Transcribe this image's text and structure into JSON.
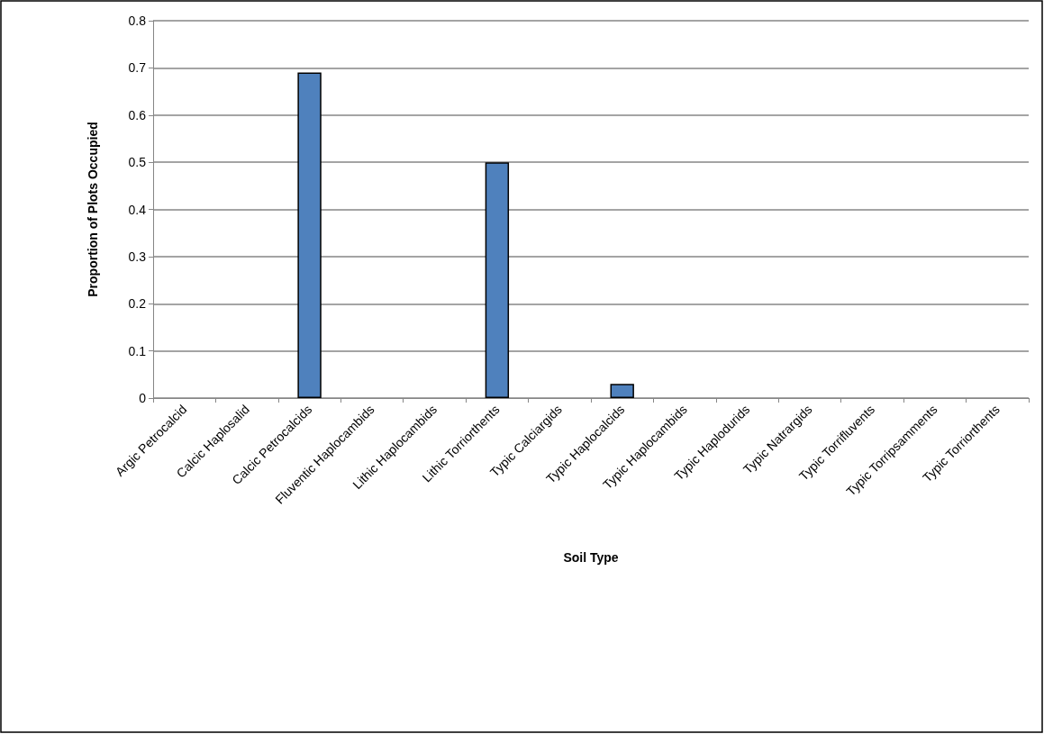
{
  "chart_data": {
    "type": "bar",
    "xlabel": "Soil Type",
    "ylabel": "Proportion of Plots Occupied",
    "categories": [
      "Argic Petrocalcid",
      "Calcic Haplosalid",
      "Calcic Petrocalcids",
      "Fluventic Haplocambids",
      "Lithic Haplocambids",
      "Lithic Torriorthents",
      "Typic Calciargids",
      "Typic Haplocalcids",
      "Typic Haplocambids",
      "Typic Haplodurids",
      "Typic Natrargids",
      "Typic Torrifluvents",
      "Typic Torripsamments",
      "Typic Torriorthents"
    ],
    "values": [
      0,
      0,
      0.69,
      0,
      0,
      0.5,
      0,
      0.03,
      0,
      0,
      0,
      0,
      0,
      0
    ],
    "color": "#4f81bd",
    "ylim": [
      0,
      0.8
    ],
    "yticks": [
      0,
      0.1,
      0.2,
      0.3,
      0.4,
      0.5,
      0.6,
      0.7,
      0.8
    ],
    "grid": "y"
  }
}
